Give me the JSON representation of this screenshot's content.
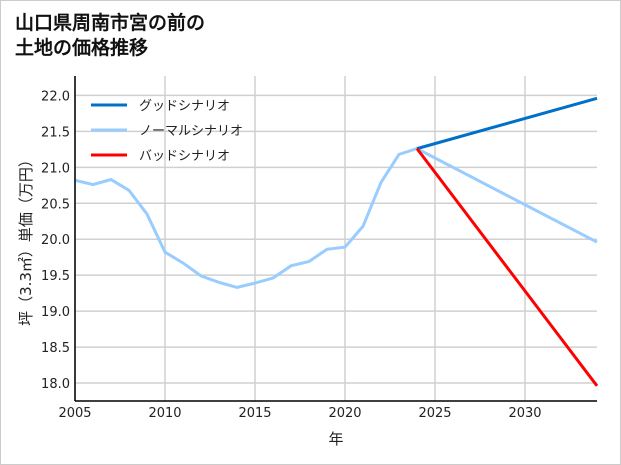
{
  "chart_data": {
    "type": "line",
    "title_lines": [
      "山口県周南市宮の前の",
      "土地の価格推移"
    ],
    "xlabel": "年",
    "ylabel": "坪（3.3㎡）単価（万円）",
    "xlim": [
      2005,
      2034
    ],
    "ylim": [
      17.75,
      22.27
    ],
    "xticks": [
      2005,
      2010,
      2015,
      2020,
      2025,
      2030
    ],
    "yticks": [
      18.0,
      18.5,
      19.0,
      19.5,
      20.0,
      20.5,
      21.0,
      21.5,
      22.0
    ],
    "grid": true,
    "legend_position": "top-left",
    "series": [
      {
        "name": "グッドシナリオ",
        "color": "#0070c8",
        "x": [
          2024,
          2034
        ],
        "y": [
          21.26,
          21.96
        ]
      },
      {
        "name": "ノーマルシナリオ",
        "color": "#99ccff",
        "x": [
          2005,
          2006,
          2007,
          2008,
          2009,
          2010,
          2011,
          2012,
          2013,
          2014,
          2015,
          2016,
          2017,
          2018,
          2019,
          2020,
          2021,
          2022,
          2023,
          2024,
          2034
        ],
        "y": [
          20.82,
          20.76,
          20.83,
          20.68,
          20.35,
          19.82,
          19.67,
          19.49,
          19.4,
          19.33,
          19.39,
          19.46,
          19.63,
          19.69,
          19.86,
          19.89,
          20.18,
          20.79,
          21.18,
          21.26,
          19.96
        ]
      },
      {
        "name": "バッドシナリオ",
        "color": "#ff0000",
        "x": [
          2024,
          2034
        ],
        "y": [
          21.26,
          17.96
        ]
      }
    ]
  }
}
